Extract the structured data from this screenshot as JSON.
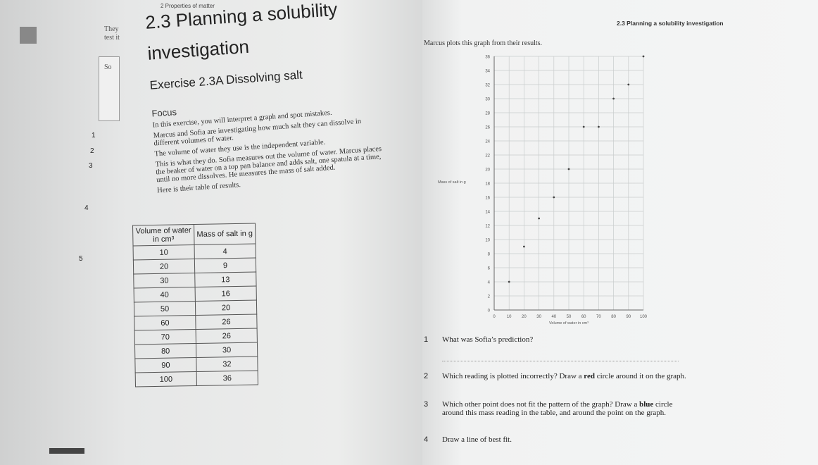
{
  "header": {
    "left": "2  Properties of matter",
    "right": "2.3 Planning a solubility investigation"
  },
  "margin": {
    "words": [
      "They",
      "test it",
      "So"
    ],
    "numbers": [
      "1",
      "2",
      "3",
      "4",
      "5"
    ]
  },
  "section": {
    "title": "2.3 Planning a solubility investigation",
    "exercise": "Exercise 2.3A Dissolving salt",
    "focus": "Focus",
    "paragraphs": [
      "In this exercise, you will interpret a graph and spot mistakes.",
      "Marcus and Sofia are investigating how much salt they can dissolve in different volumes of water.",
      "The volume of water they use is the independent variable.",
      "This is what they do. Sofia measures out the volume of water. Marcus places the beaker of water on a top pan balance and adds salt, one spatula at a time, until no more dissolves. He measures the mass of salt added.",
      "Here is their table of results."
    ]
  },
  "table": {
    "headers": [
      "Volume of water in cm³",
      "Mass of salt in g"
    ],
    "rows": [
      [
        "10",
        "4"
      ],
      [
        "20",
        "9"
      ],
      [
        "30",
        "13"
      ],
      [
        "40",
        "16"
      ],
      [
        "50",
        "20"
      ],
      [
        "60",
        "26"
      ],
      [
        "70",
        "26"
      ],
      [
        "80",
        "30"
      ],
      [
        "90",
        "32"
      ],
      [
        "100",
        "36"
      ]
    ]
  },
  "intro": "Marcus plots this graph from their results.",
  "graph": {
    "type": "scatter",
    "x_label": "Volume of water in cm³",
    "y_label": "Mass of salt in g",
    "x": [
      10,
      20,
      30,
      40,
      50,
      60,
      70,
      80,
      90,
      100
    ],
    "values": [
      4,
      9,
      13,
      16,
      20,
      26,
      26,
      30,
      32,
      36
    ],
    "xlim": [
      0,
      100
    ],
    "ylim": [
      0,
      36
    ],
    "xticks": [
      0,
      10,
      20,
      30,
      40,
      50,
      60,
      70,
      80,
      90,
      100
    ],
    "yticks": [
      0,
      2,
      4,
      6,
      8,
      10,
      12,
      14,
      16,
      18,
      20,
      22,
      24,
      26,
      28,
      30,
      32,
      34,
      36
    ],
    "grid": true,
    "color": "#444444"
  },
  "questions": [
    {
      "number": "1",
      "parts": [
        "What was Sofia’s prediction?"
      ]
    },
    {
      "number": "2",
      "parts": [
        "Which reading is plotted incorrectly? Draw a ",
        "red",
        " circle around it on the graph."
      ]
    },
    {
      "number": "3",
      "parts": [
        "Which other point does not fit the pattern of the graph? Draw a ",
        "blue",
        " circle around this mass reading in the table, and around the point on the graph."
      ]
    },
    {
      "number": "4",
      "parts": [
        "Draw a line of best fit."
      ]
    }
  ]
}
